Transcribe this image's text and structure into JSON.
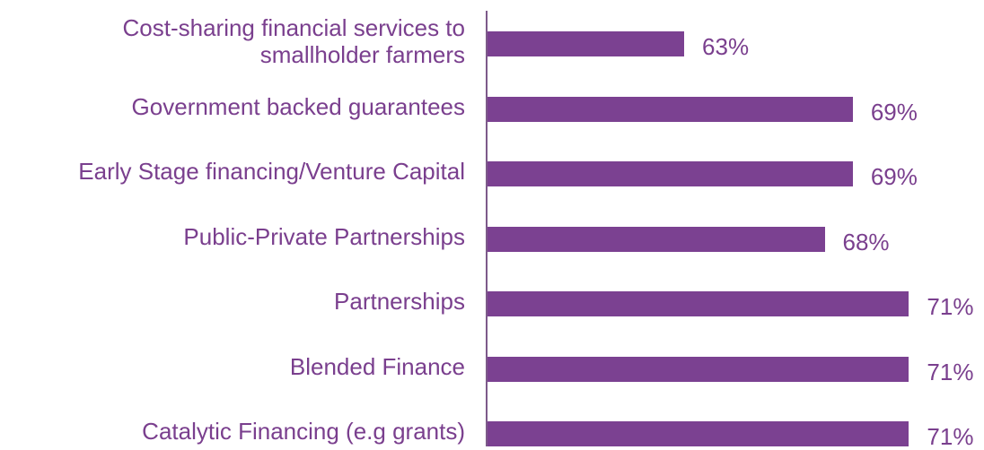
{
  "chart_data": {
    "type": "bar",
    "orientation": "horizontal",
    "categories": [
      "Cost-sharing financial services to\nsmallholder farmers",
      "Government backed guarantees",
      "Early Stage financing/Venture Capital",
      "Public-Private Partnerships",
      "Partnerships",
      "Blended Finance",
      "Catalytic Financing (e.g grants)"
    ],
    "values": [
      63,
      69,
      69,
      68,
      71,
      71,
      71
    ],
    "value_labels": [
      "63%",
      "69%",
      "69%",
      "68%",
      "71%",
      "71%",
      "71%"
    ],
    "color": "#7b4191",
    "xlim": [
      56,
      73
    ]
  }
}
